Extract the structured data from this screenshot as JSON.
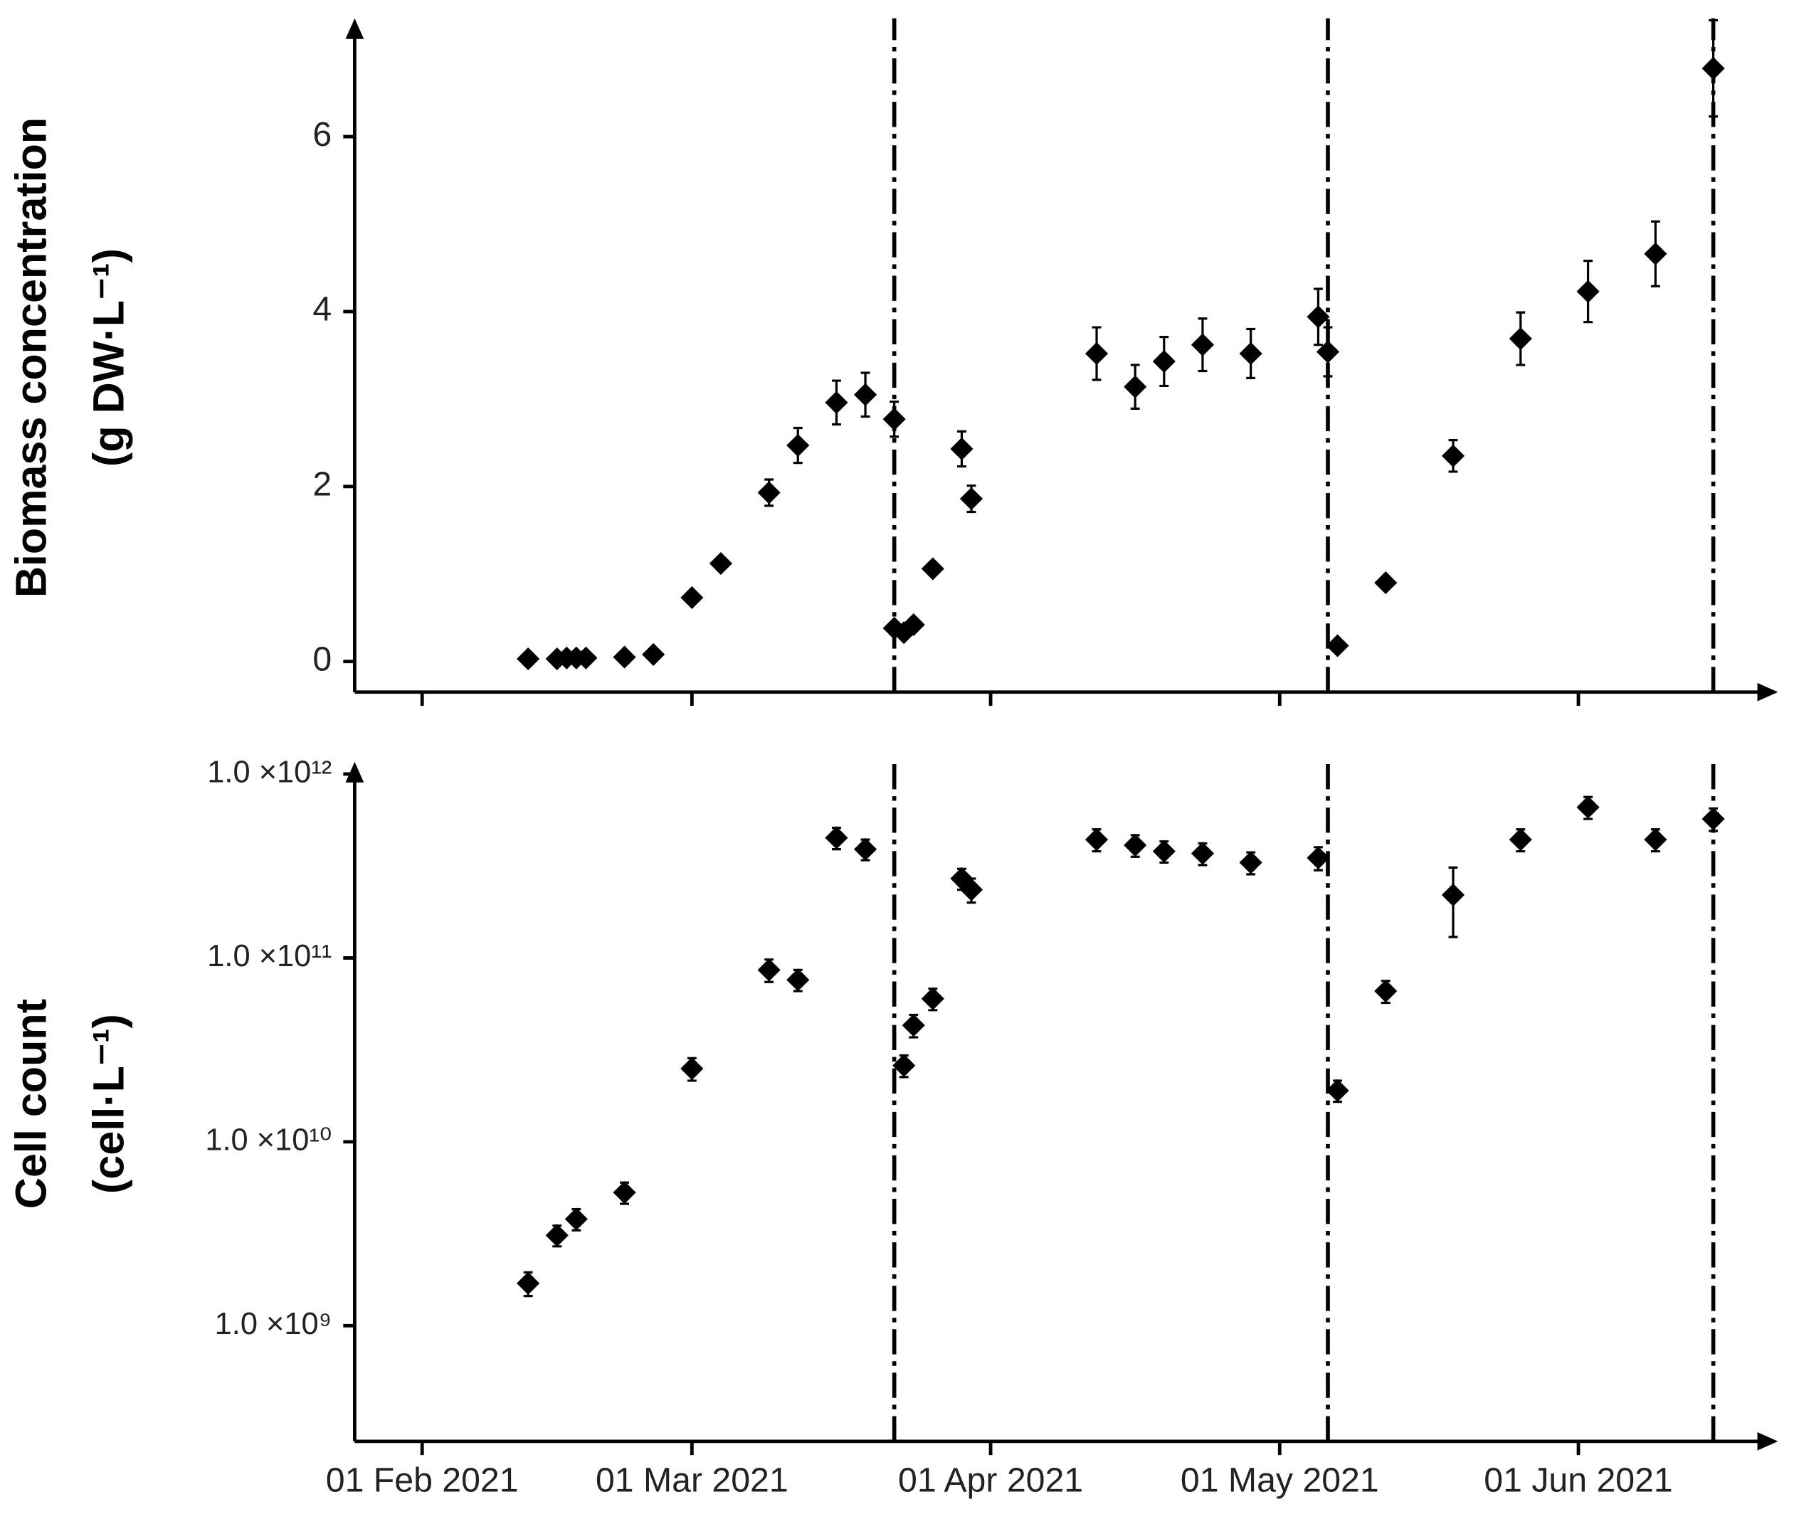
{
  "chart_data": [
    {
      "type": "scatter",
      "ylabel": [
        "Biomass concentration",
        "(g DW·L⁻¹)"
      ],
      "yscale": "linear",
      "grid": false,
      "color": "#000000",
      "xlim": [
        "2021-01-25",
        "2021-06-21"
      ],
      "xticks": [
        "2021-02-01",
        "2021-03-01",
        "2021-04-01",
        "2021-05-01",
        "2021-06-01"
      ],
      "ylim": [
        -0.35,
        7.3
      ],
      "yticks": [
        0,
        2,
        4,
        6
      ],
      "vlines": [
        "2021-03-22",
        "2021-05-06",
        "2021-06-15"
      ],
      "x": [
        "2021-02-12",
        "2021-02-15",
        "2021-02-16",
        "2021-02-17",
        "2021-02-18",
        "2021-02-22",
        "2021-02-25",
        "2021-03-01",
        "2021-03-04",
        "2021-03-09",
        "2021-03-12",
        "2021-03-16",
        "2021-03-19",
        "2021-03-22",
        "2021-03-22",
        "2021-03-23",
        "2021-03-24",
        "2021-03-26",
        "2021-03-29",
        "2021-03-30",
        "2021-04-12",
        "2021-04-16",
        "2021-04-19",
        "2021-04-23",
        "2021-04-28",
        "2021-05-05",
        "2021-05-06",
        "2021-05-07",
        "2021-05-12",
        "2021-05-19",
        "2021-05-26",
        "2021-06-02",
        "2021-06-09",
        "2021-06-15"
      ],
      "values": [
        0.03,
        0.03,
        0.04,
        0.04,
        0.04,
        0.05,
        0.08,
        0.73,
        1.12,
        1.93,
        2.47,
        2.96,
        3.05,
        2.77,
        0.38,
        0.33,
        0.42,
        1.06,
        2.43,
        1.86,
        3.52,
        3.14,
        3.43,
        3.62,
        3.52,
        3.94,
        3.54,
        0.18,
        0.9,
        2.35,
        3.69,
        4.23,
        4.66,
        6.78
      ],
      "errors": [
        0.02,
        0.02,
        0.02,
        0.02,
        0.02,
        0.02,
        0.03,
        0.05,
        0.06,
        0.15,
        0.2,
        0.25,
        0.25,
        0.2,
        0.04,
        0.04,
        0.05,
        0.06,
        0.2,
        0.15,
        0.3,
        0.25,
        0.28,
        0.3,
        0.28,
        0.32,
        0.28,
        0.03,
        0.05,
        0.18,
        0.3,
        0.35,
        0.37,
        0.55
      ]
    },
    {
      "type": "scatter",
      "ylabel": [
        "Cell count",
        "(cell·L⁻¹)"
      ],
      "yscale": "log",
      "grid": false,
      "color": "#000000",
      "xlim": [
        "2021-01-25",
        "2021-06-21"
      ],
      "xticks": [
        {
          "value": "2021-02-01",
          "label": "01 Feb 2021"
        },
        {
          "value": "2021-03-01",
          "label": "01 Mar 2021"
        },
        {
          "value": "2021-04-01",
          "label": "01 Apr 2021"
        },
        {
          "value": "2021-05-01",
          "label": "01 May 2021"
        },
        {
          "value": "2021-06-01",
          "label": "01 Jun 2021"
        }
      ],
      "ylim": [
        235000000,
        1100000000000
      ],
      "yticks": [
        {
          "value": 1000000000,
          "label": "1.0 ×10⁹"
        },
        {
          "value": 10000000000,
          "label": "1.0 ×10¹⁰"
        },
        {
          "value": 100000000000,
          "label": "1.0 ×10¹¹"
        },
        {
          "value": 1000000000000,
          "label": "1.0 ×10¹²"
        }
      ],
      "vlines": [
        "2021-03-22",
        "2021-05-06",
        "2021-06-15"
      ],
      "x": [
        "2021-02-12",
        "2021-02-15",
        "2021-02-17",
        "2021-02-22",
        "2021-03-01",
        "2021-03-09",
        "2021-03-12",
        "2021-03-16",
        "2021-03-19",
        "2021-03-23",
        "2021-03-24",
        "2021-03-26",
        "2021-03-29",
        "2021-03-30",
        "2021-04-12",
        "2021-04-16",
        "2021-04-19",
        "2021-04-23",
        "2021-04-28",
        "2021-05-05",
        "2021-05-07",
        "2021-05-12",
        "2021-05-19",
        "2021-05-26",
        "2021-06-02",
        "2021-06-09",
        "2021-06-15"
      ],
      "values": [
        1700000000,
        3100000000,
        3800000000,
        5300000000,
        25000000000,
        86000000000,
        76000000000,
        450000000000,
        390000000000,
        26000000000,
        43000000000,
        60000000000,
        270000000000,
        235000000000,
        440000000000,
        410000000000,
        380000000000,
        370000000000,
        330000000000,
        350000000000,
        19000000000,
        66000000000,
        220000000000,
        440000000000,
        660000000000,
        440000000000,
        570000000000
      ],
      "errors": [
        250000000,
        400000000,
        500000000,
        700000000,
        3500000000,
        12000000000,
        10000000000,
        60000000000,
        50000000000,
        3500000000,
        6000000000,
        8000000000,
        35000000000,
        35000000000,
        60000000000,
        55000000000,
        50000000000,
        50000000000,
        45000000000,
        50000000000,
        2500000000,
        9000000000,
        90000000000,
        60000000000,
        90000000000,
        60000000000,
        80000000000
      ]
    }
  ]
}
